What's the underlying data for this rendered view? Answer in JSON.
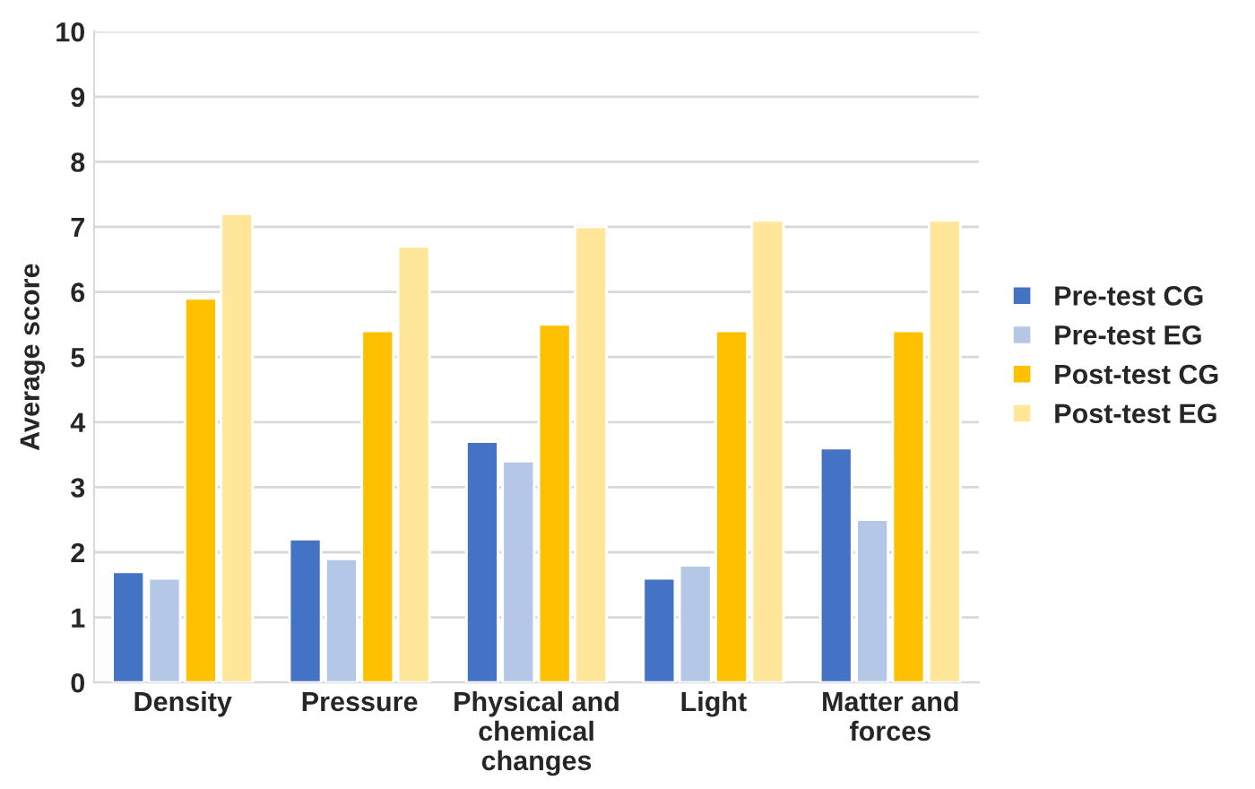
{
  "chart_data": {
    "type": "bar",
    "ylabel": "Average score",
    "categories": [
      "Density",
      "Pressure",
      "Physical and\nchemical\nchanges",
      "Light",
      "Matter and\nforces"
    ],
    "series": [
      {
        "name": "Pre-test CG",
        "color": "#4472c4",
        "values": [
          1.7,
          2.2,
          3.7,
          1.6,
          3.6
        ]
      },
      {
        "name": "Pre-test EG",
        "color": "#b4c7e7",
        "values": [
          1.6,
          1.9,
          3.4,
          1.8,
          2.5
        ]
      },
      {
        "name": "Post-test CG",
        "color": "#ffc000",
        "values": [
          5.9,
          5.4,
          5.5,
          5.4,
          5.4
        ]
      },
      {
        "name": "Post-test EG",
        "color": "#ffe699",
        "values": [
          7.2,
          6.7,
          7.0,
          7.1,
          7.1
        ]
      }
    ],
    "ylim": [
      0,
      10
    ],
    "yticks": [
      0,
      1,
      2,
      3,
      4,
      5,
      6,
      7,
      8,
      9,
      10
    ],
    "grid": "y",
    "legend": "right"
  }
}
